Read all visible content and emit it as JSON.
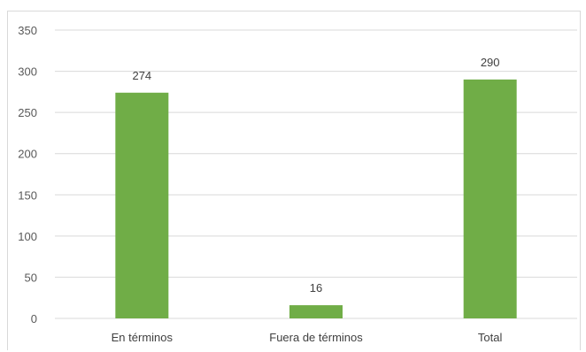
{
  "chart_data": {
    "type": "bar",
    "categories": [
      "En términos",
      "Fuera de términos",
      "Total"
    ],
    "values": [
      274,
      16,
      290
    ],
    "data_labels": [
      "274",
      "16",
      "290"
    ],
    "title": "",
    "xlabel": "",
    "ylabel": "",
    "ylim": [
      0,
      350
    ],
    "yticks": [
      0,
      50,
      100,
      150,
      200,
      250,
      300,
      350
    ],
    "grid": true,
    "legend": "none",
    "bar_color": "#70ad47"
  }
}
